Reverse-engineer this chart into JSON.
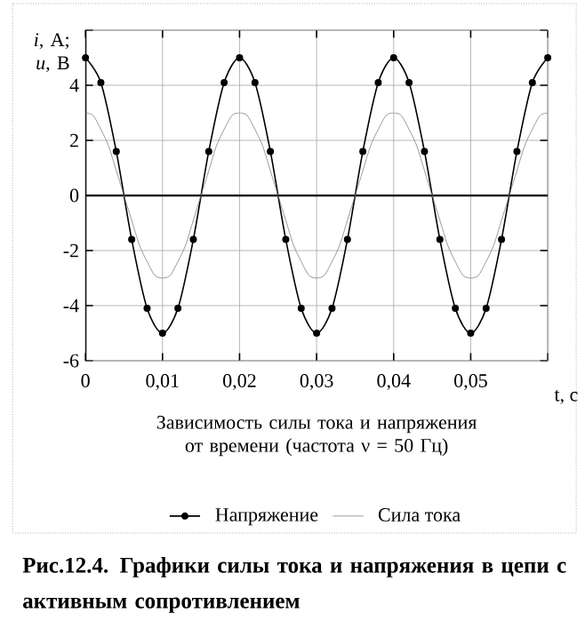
{
  "chart_data": {
    "type": "line",
    "title": "Зависимость силы тока и напряжения от времени (частота ν = 50 Гц)",
    "xlabel": "t, c",
    "ylabel": "*i*, A; *u*, B",
    "annotations": [
      "**Рис.12.4. Графики силы тока и напряжения в цепи с активным сопротивлением**"
    ],
    "xlim": [
      0,
      0.06
    ],
    "ylim": [
      -6,
      6
    ],
    "xticks": [
      {
        "value": 0,
        "label": "0"
      },
      {
        "value": 0.01,
        "label": "0,01"
      },
      {
        "value": 0.02,
        "label": "0,02"
      },
      {
        "value": 0.03,
        "label": "0,03"
      },
      {
        "value": 0.04,
        "label": "0,04"
      },
      {
        "value": 0.05,
        "label": "0,05"
      },
      {
        "value": 0.06,
        "label": null
      }
    ],
    "yticks": [
      -6,
      -4,
      -2,
      0,
      2,
      4,
      {
        "value": 6,
        "label": null
      }
    ],
    "grid": true,
    "legend": "bottom",
    "series": [
      {
        "name": "Напряжение",
        "color": "#000000",
        "marker": "circle",
        "x": [
          0,
          0.002,
          0.004,
          0.006,
          0.008,
          0.01,
          0.012,
          0.014,
          0.016,
          0.018,
          0.02,
          0.022,
          0.024,
          0.026,
          0.028,
          0.03,
          0.032,
          0.034,
          0.036,
          0.038,
          0.04,
          0.042,
          0.044,
          0.046,
          0.048,
          0.05,
          0.052,
          0.054,
          0.056,
          0.058,
          0.06
        ],
        "values": [
          5,
          4.1,
          1.6,
          -1.6,
          -4.1,
          -5,
          -4.1,
          -1.6,
          1.6,
          4.1,
          5,
          4.1,
          1.6,
          -1.6,
          -4.1,
          -5,
          -4.1,
          -1.6,
          1.6,
          4.1,
          5,
          4.1,
          1.6,
          -1.6,
          -4.1,
          -5,
          -4.1,
          -1.6,
          1.6,
          4.1,
          5
        ]
      },
      {
        "name": "Сила тока",
        "color": "#808080",
        "marker": "none",
        "x": [
          0,
          0.001,
          0.002,
          0.003,
          0.004,
          0.005,
          0.006,
          0.007,
          0.008,
          0.009,
          0.01,
          0.011,
          0.012,
          0.013,
          0.014,
          0.015,
          0.016,
          0.017,
          0.018,
          0.019,
          0.02,
          0.021,
          0.022,
          0.023,
          0.024,
          0.025,
          0.026,
          0.027,
          0.028,
          0.029,
          0.03,
          0.031,
          0.032,
          0.033,
          0.034,
          0.035,
          0.036,
          0.037,
          0.038,
          0.039,
          0.04,
          0.041,
          0.042,
          0.043,
          0.044,
          0.045,
          0.046,
          0.047,
          0.048,
          0.049,
          0.05,
          0.051,
          0.052,
          0.053,
          0.054,
          0.055,
          0.056,
          0.057,
          0.058,
          0.059,
          0.06
        ],
        "values": [
          3,
          2.9,
          2.4,
          1.8,
          0.9,
          0,
          -0.9,
          -1.8,
          -2.4,
          -2.9,
          -3,
          -2.9,
          -2.4,
          -1.8,
          -0.9,
          0,
          0.9,
          1.8,
          2.4,
          2.9,
          3,
          2.9,
          2.4,
          1.8,
          0.9,
          0,
          -0.9,
          -1.8,
          -2.4,
          -2.9,
          -3,
          -2.9,
          -2.4,
          -1.8,
          -0.9,
          0,
          0.9,
          1.8,
          2.4,
          2.9,
          3,
          2.9,
          2.4,
          1.8,
          0.9,
          0,
          -0.9,
          -1.8,
          -2.4,
          -2.9,
          -3,
          -2.9,
          -2.4,
          -1.8,
          -0.9,
          0,
          0.9,
          1.8,
          2.4,
          2.9,
          3
        ]
      }
    ]
  }
}
